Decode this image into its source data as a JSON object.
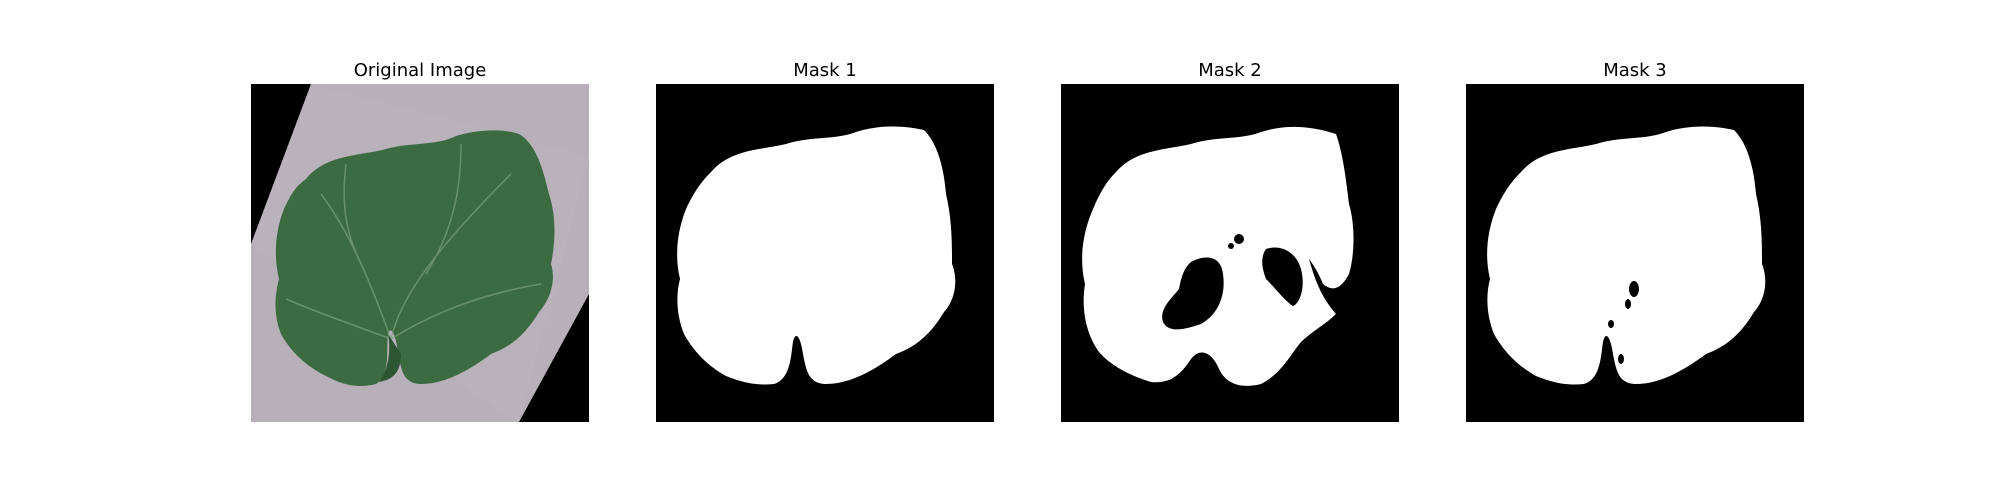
{
  "figure": {
    "panels": [
      {
        "title": "Original Image",
        "kind": "photo"
      },
      {
        "title": "Mask 1",
        "kind": "mask"
      },
      {
        "title": "Mask 2",
        "kind": "mask"
      },
      {
        "title": "Mask 3",
        "kind": "mask"
      }
    ],
    "colors": {
      "background": "#000000",
      "mask": "#ffffff",
      "paper": "#b7b0b8",
      "leaf": "#3c6b41",
      "leaf_dark": "#2d5632",
      "vein": "#7aa07a"
    }
  }
}
